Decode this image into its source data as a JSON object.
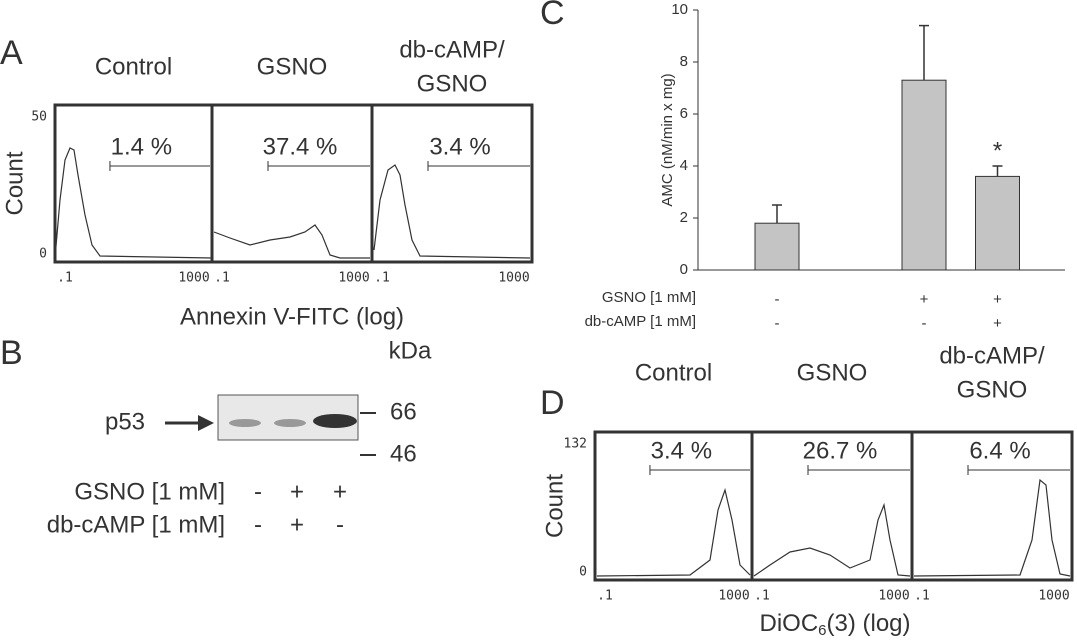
{
  "panel_a": {
    "letter": "A",
    "titles": [
      [
        "Control"
      ],
      [
        "GSNO"
      ],
      [
        "db-cAMP/",
        "GSNO"
      ]
    ],
    "ylabel": "Count",
    "yticks": [
      "50",
      "0"
    ],
    "xticks": [
      ".1",
      "1000"
    ],
    "percentages": [
      "1.4 %",
      "37.4 %",
      "3.4 %"
    ],
    "xlabel": "Annexin V-FITC (log)"
  },
  "panel_b": {
    "letter": "B",
    "unit": "kDa",
    "protein": "p53",
    "markers": [
      "66",
      "46"
    ],
    "rows": [
      {
        "label": "GSNO [1 mM]",
        "signs": [
          "-",
          "+",
          "+"
        ]
      },
      {
        "label": "db-cAMP [1 mM]",
        "signs": [
          "-",
          "+",
          "-"
        ]
      }
    ]
  },
  "chart_data": {
    "type": "bar",
    "letter": "C",
    "ylabel": "AMC (nM/min x mg)",
    "categories": [
      null,
      null,
      null,
      null
    ],
    "values": [
      1.8,
      null,
      7.3,
      3.6
    ],
    "errors": [
      0.7,
      null,
      2.1,
      0.4
    ],
    "annotations": [
      null,
      null,
      null,
      "*"
    ],
    "color": "#c4c4c4",
    "ylim": [
      0,
      10
    ],
    "yticks": [
      0,
      2,
      4,
      6,
      8,
      10
    ],
    "treatments": [
      {
        "label": "GSNO [1 mM]",
        "signs": [
          "-",
          null,
          "+",
          "+"
        ]
      },
      {
        "label": "db-cAMP [1 mM]",
        "signs": [
          "-",
          null,
          "-",
          "+"
        ]
      }
    ]
  },
  "panel_d": {
    "letter": "D",
    "titles": [
      [
        "Control"
      ],
      [
        "GSNO"
      ],
      [
        "db-cAMP/",
        "GSNO"
      ]
    ],
    "ylabel": "Count",
    "yticks": [
      "132",
      "0"
    ],
    "xticks": [
      ".1",
      "1000"
    ],
    "percentages": [
      "3.4 %",
      "26.7 %",
      "6.4 %"
    ],
    "xlabel": [
      "DiOC",
      "6",
      "(3) (log)"
    ]
  }
}
